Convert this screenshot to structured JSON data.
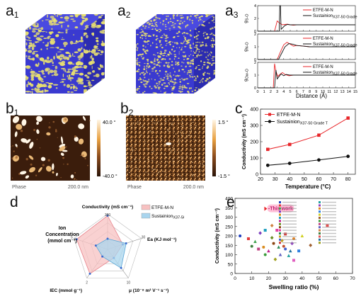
{
  "labels": {
    "a1": "a",
    "a1_sub": "1",
    "a2": "a",
    "a2_sub": "2",
    "a3": "a",
    "a3_sub": "3",
    "b1": "b",
    "b1_sub": "1",
    "b2": "b",
    "b2_sub": "2",
    "c": "c",
    "d": "d",
    "e": "e"
  },
  "colors": {
    "polymer_blue": "#3a3ad0",
    "water_yellow": "#e8e070",
    "red": "#e8262a",
    "black": "#111111",
    "radar_red_fill": "#f7c1c1",
    "radar_blue_fill": "#a9d5ee",
    "afm_dark": "#3b1d0c",
    "afm_light": "#fff6e6"
  },
  "afm_b1": {
    "scale_top": "40.0 °",
    "scale_bottom": "-40.0 °",
    "mode": "Phase",
    "scale_bar": "200.0 nm"
  },
  "afm_b2": {
    "scale_top": "1.5 °",
    "scale_bottom": "-1.5 °",
    "mode": "Phase",
    "scale_bar": "200.0 nm"
  },
  "chart_data": [
    {
      "id": "a3",
      "type": "line",
      "xlabel": "Distance (Å)",
      "xlim": [
        0,
        15
      ],
      "xticks": [
        0,
        1,
        2,
        3,
        4,
        5,
        6,
        7,
        8,
        9,
        10,
        11,
        12,
        13,
        14,
        15
      ],
      "subplots": [
        {
          "ylabel": "g_S-O_w(r)",
          "ylabel_main": "g",
          "ylabel_sub": "S-O",
          "ylim": [
            0,
            4
          ],
          "yticks": [
            0,
            2,
            4
          ],
          "series": [
            {
              "name": "ETFE-M-N",
              "color": "#e8262a",
              "x": [
                0,
                2.6,
                3.0,
                3.4,
                3.8,
                4.2,
                4.6,
                5.0,
                5.5,
                6,
                7,
                8,
                10,
                12,
                15
              ],
              "y": [
                0,
                0,
                1.6,
                1.25,
                1.0,
                1.05,
                1.1,
                1.0,
                0.95,
                1.0,
                1.0,
                1.0,
                1.0,
                1.0,
                1.0
              ]
            },
            {
              "name": "Sustainion® X37-50 Grade T",
              "name_main": "Sustainion",
              "name_sub": "X37-50 Grade T",
              "color": "#111111",
              "x": [
                0,
                3.3,
                3.4,
                3.5,
                3.6,
                3.8,
                4.2,
                4.6,
                5.0,
                6,
                8,
                10,
                15
              ],
              "y": [
                0,
                0,
                4.0,
                4.0,
                0.3,
                0.5,
                0.9,
                1.05,
                1.0,
                1.0,
                1.0,
                1.0,
                1.0
              ]
            }
          ]
        },
        {
          "ylabel": "g_N-O_hydroxide(r)",
          "ylabel_main": "g",
          "ylabel_sub": "N-O",
          "ylim": [
            0,
            2
          ],
          "yticks": [
            0,
            1,
            2
          ],
          "series": [
            {
              "name": "ETFE-M-N",
              "color": "#e8262a",
              "x": [
                0,
                3.0,
                3.5,
                4.0,
                4.5,
                5.0,
                5.5,
                6.0,
                7,
                8,
                10,
                12,
                15
              ],
              "y": [
                0,
                0,
                0.6,
                1.15,
                1.35,
                1.2,
                1.05,
                1.1,
                1.05,
                1.0,
                1.0,
                1.0,
                1.0
              ]
            },
            {
              "name": "Sustainion® X37-50 Grade T",
              "name_main": "Sustainion",
              "name_sub": "X37-50 Grade T",
              "color": "#111111",
              "x": [
                0,
                3.2,
                3.7,
                4.2,
                4.8,
                5.4,
                6.0,
                7,
                8,
                10,
                12,
                15
              ],
              "y": [
                0,
                0,
                0.5,
                1.0,
                1.25,
                1.2,
                1.1,
                1.05,
                1.0,
                1.0,
                1.0,
                1.0
              ]
            }
          ]
        },
        {
          "ylabel": "g_O_w-O_hydroxide(r)",
          "ylabel_main": "g",
          "ylabel_sub": "Ow-O",
          "ylim": [
            0,
            2
          ],
          "yticks": [
            0,
            1,
            2
          ],
          "series": [
            {
              "name": "ETFE-M-N",
              "color": "#e8262a",
              "x": [
                0,
                2.4,
                2.6,
                2.8,
                3.1,
                3.4,
                3.8,
                4.2,
                4.8,
                5.5,
                6.5,
                8,
                10,
                15
              ],
              "y": [
                0,
                0,
                1.9,
                1.3,
                0.9,
                1.05,
                1.2,
                1.05,
                0.95,
                1.0,
                1.0,
                1.0,
                1.0,
                1.0
              ]
            },
            {
              "name": "Sustainion® X37-50 Grade T",
              "name_main": "Sustainion",
              "name_sub": "X37-50 Grade T",
              "color": "#111111",
              "x": [
                0,
                2.6,
                2.8,
                3.0,
                3.3,
                3.6,
                4.0,
                4.4,
                4.9,
                5.5,
                6.5,
                8,
                10,
                15
              ],
              "y": [
                0,
                0,
                1.4,
                0.7,
                0.9,
                1.1,
                0.95,
                1.05,
                1.0,
                1.0,
                1.0,
                1.0,
                1.0,
                1.0
              ]
            }
          ]
        }
      ]
    },
    {
      "id": "c",
      "type": "line",
      "xlabel": "Temperature (°C)",
      "ylabel": "Conductivity (mS cm⁻¹)",
      "xlim": [
        20,
        85
      ],
      "ylim": [
        0,
        400
      ],
      "xticks": [
        20,
        30,
        40,
        50,
        60,
        70,
        80
      ],
      "yticks": [
        0,
        100,
        200,
        300,
        400
      ],
      "x": [
        25,
        40,
        60,
        80
      ],
      "series": [
        {
          "name": "ETFE-M-N",
          "color": "#e8262a",
          "marker": "square",
          "values": [
            153,
            183,
            240,
            345
          ]
        },
        {
          "name": "Sustainion® X37-50 Grade T",
          "name_main": "Sustainion",
          "name_sub": "X37-50 Grade T",
          "color": "#111111",
          "marker": "circle",
          "values": [
            55,
            67,
            88,
            110
          ]
        }
      ]
    },
    {
      "id": "d",
      "type": "radar",
      "axes": [
        {
          "label": "Conductivity (mS cm⁻¹)",
          "max_label": "360"
        },
        {
          "label": "Ea (KJ mol⁻¹)",
          "max_label": "30"
        },
        {
          "label": "μ (10⁻⁸ m² V⁻¹ s⁻¹)",
          "max_label": "10"
        },
        {
          "label": "IEC (mmol g⁻¹)",
          "max_label": "2"
        },
        {
          "label": "Ion Concentration (mmol cm⁻³)",
          "max_label": "5"
        }
      ],
      "series": [
        {
          "name": "ETFE-M-N",
          "color": "#f7c1c1",
          "values": [
            0.95,
            0.45,
            0.3,
            0.85,
            0.92
          ]
        },
        {
          "name": "Sustainion® X37-50 Grade T",
          "name_main": "Sustainion",
          "name_sub": "X37-50 Grade T",
          "color": "#a9d5ee",
          "values": [
            0.3,
            0.55,
            0.65,
            0.25,
            0.35
          ]
        }
      ]
    },
    {
      "id": "e",
      "type": "scatter",
      "xlabel": "Swelling ratio (%)",
      "ylabel": "Conductivity (mS cm⁻¹)",
      "xlim": [
        0,
        70
      ],
      "ylim": [
        0,
        400
      ],
      "xticks": [
        0,
        10,
        20,
        30,
        40,
        50,
        60,
        70
      ],
      "yticks": [
        0,
        50,
        100,
        150,
        200,
        250,
        300,
        350,
        400
      ],
      "highlight": {
        "label": "-This work",
        "x": 20,
        "y": 345
      },
      "points": [
        {
          "x": 3,
          "y": 200,
          "color": "#1f3fbf"
        },
        {
          "x": 8,
          "y": 185,
          "color": "#e23c3c"
        },
        {
          "x": 12,
          "y": 170,
          "color": "#3fa34d"
        },
        {
          "x": 15,
          "y": 215,
          "color": "#7a3fbf"
        },
        {
          "x": 17,
          "y": 140,
          "color": "#d98b1f"
        },
        {
          "x": 18,
          "y": 230,
          "color": "#1f9fbf"
        },
        {
          "x": 20,
          "y": 120,
          "color": "#bf1f8b"
        },
        {
          "x": 22,
          "y": 190,
          "color": "#6b8e23"
        },
        {
          "x": 23,
          "y": 160,
          "color": "#8b4513"
        },
        {
          "x": 25,
          "y": 230,
          "color": "#e03fa0"
        },
        {
          "x": 26,
          "y": 140,
          "color": "#2e8b57"
        },
        {
          "x": 28,
          "y": 175,
          "color": "#c0a020"
        },
        {
          "x": 30,
          "y": 130,
          "color": "#4060d0"
        },
        {
          "x": 30,
          "y": 210,
          "color": "#d04040"
        },
        {
          "x": 32,
          "y": 95,
          "color": "#20a0a0"
        },
        {
          "x": 34,
          "y": 160,
          "color": "#9040c0"
        },
        {
          "x": 35,
          "y": 185,
          "color": "#e08020"
        },
        {
          "x": 38,
          "y": 120,
          "color": "#3080e0"
        },
        {
          "x": 40,
          "y": 200,
          "color": "#d0d020"
        },
        {
          "x": 45,
          "y": 150,
          "color": "#a06030"
        },
        {
          "x": 18,
          "y": 100,
          "color": "#3c9c3c"
        },
        {
          "x": 14,
          "y": 130,
          "color": "#c04080"
        },
        {
          "x": 27,
          "y": 100,
          "color": "#6060c0"
        },
        {
          "x": 22,
          "y": 255,
          "color": "#d08040"
        },
        {
          "x": 10,
          "y": 145,
          "color": "#408040"
        },
        {
          "x": 55,
          "y": 255,
          "color": "#e05050"
        },
        {
          "x": 33,
          "y": 120,
          "color": "#2070a0"
        },
        {
          "x": 24,
          "y": 75,
          "color": "#a0a020"
        },
        {
          "x": 29,
          "y": 145,
          "color": "#c05030"
        },
        {
          "x": 35,
          "y": 70,
          "color": "#e060c0"
        }
      ]
    }
  ]
}
